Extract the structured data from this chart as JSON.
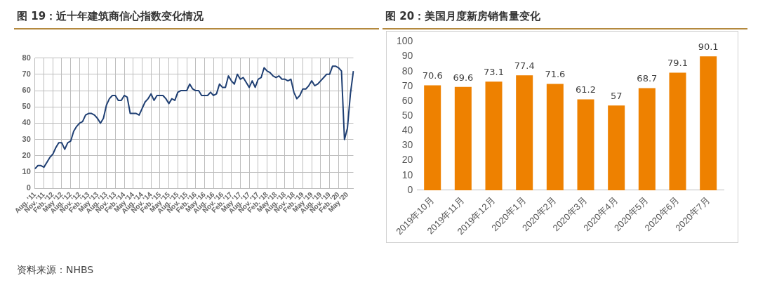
{
  "chart_data": [
    {
      "type": "line",
      "title": "图 19：近十年建筑商信心指数变化情况",
      "categories": [
        "Aug. '11",
        null,
        null,
        "Nov. '11",
        null,
        null,
        "Feb. '12",
        null,
        null,
        "May '12",
        null,
        null,
        "Aug. '12",
        null,
        null,
        "Nov. '12",
        null,
        null,
        "Feb. '13",
        null,
        null,
        "May '13",
        null,
        null,
        "Aug. '13",
        null,
        null,
        "Nov. '13",
        null,
        null,
        "Feb. '14",
        null,
        null,
        "May '14",
        null,
        null,
        "Aug. '14",
        null,
        null,
        "Nov. '14",
        null,
        null,
        "Feb. '15",
        null,
        null,
        "May '15",
        null,
        null,
        "Aug. '15",
        null,
        null,
        "Nov. '15",
        null,
        null,
        "Feb. '16",
        null,
        null,
        "May '16",
        null,
        null,
        "Aug. '16",
        null,
        null,
        "Nov. '16",
        null,
        null,
        "Feb. '17",
        null,
        null,
        "May '17",
        null,
        null,
        "Aug. '17",
        null,
        null,
        "Nov. '17",
        null,
        null,
        "Feb. '18",
        null,
        null,
        "May '18",
        null,
        null,
        "Aug. '18",
        null,
        null,
        "Nov. '18",
        null,
        null,
        "Feb. '19",
        null,
        null,
        "May '19",
        null,
        null,
        "Aug. '19",
        null,
        null,
        "Nov. '19",
        null,
        null,
        "Feb. '20",
        null,
        null,
        "May '20",
        null,
        null
      ],
      "series": [
        {
          "color": "#1f3f73",
          "values": [
            12,
            14,
            14,
            13,
            16,
            19,
            21,
            25,
            28,
            28,
            24,
            28,
            29,
            35,
            38,
            40,
            41,
            45,
            46,
            46,
            45,
            43,
            40,
            43,
            51,
            55,
            57,
            57,
            54,
            54,
            57,
            56,
            46,
            46,
            46,
            45,
            49,
            53,
            55,
            58,
            54,
            57,
            57,
            57,
            55,
            52,
            55,
            54,
            59,
            60,
            60,
            60,
            64,
            61,
            60,
            60,
            57,
            57,
            57,
            59,
            57,
            58,
            64,
            62,
            62,
            69,
            66,
            64,
            70,
            67,
            68,
            65,
            62,
            66,
            62,
            67,
            68,
            74,
            72,
            71,
            69,
            68,
            69,
            67,
            67,
            66,
            67,
            59,
            55,
            57,
            61,
            61,
            63,
            66,
            63,
            64,
            66,
            68,
            70,
            70,
            75,
            75,
            74,
            72,
            30,
            37,
            58,
            72
          ]
        }
      ],
      "ylim": [
        0,
        80
      ],
      "yticks": [
        0,
        10,
        20,
        30,
        40,
        50,
        60,
        70,
        80
      ],
      "grid": true,
      "annotations": [
        "资料来源：NHBS"
      ]
    },
    {
      "type": "bar",
      "title": "图 20：美国月度新房销售量变化",
      "categories": [
        "2019年10月",
        "2019年11月",
        "2019年12月",
        "2020年1月",
        "2020年2月",
        "2020年3月",
        "2020年4月",
        "2020年5月",
        "2020年6月",
        "2020年7月"
      ],
      "values": [
        70.6,
        69.6,
        73.1,
        77.4,
        71.6,
        61.2,
        57,
        68.7,
        79.1,
        90.1
      ],
      "color": "#ee8100",
      "ylim": [
        0,
        100
      ],
      "yticks": [
        0,
        10,
        20,
        30,
        40,
        50,
        60,
        70,
        80,
        90,
        100
      ],
      "data_labels": true
    }
  ]
}
